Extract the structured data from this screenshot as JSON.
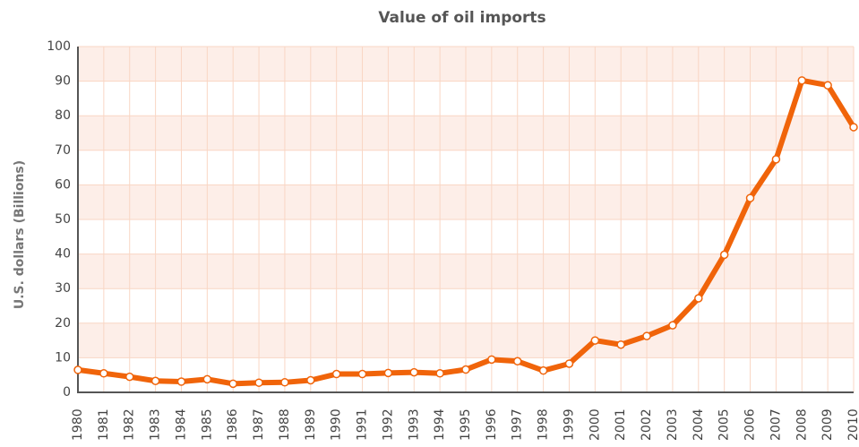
{
  "chart_data": {
    "type": "line",
    "title": "Value of oil imports",
    "y_label": "U.S. dollars (Billions)",
    "categories": [
      "1980",
      "1981",
      "1982",
      "1983",
      "1984",
      "1985",
      "1986",
      "1987",
      "1988",
      "1989",
      "1990",
      "1991",
      "1992",
      "1993",
      "1994",
      "1995",
      "1996",
      "1997",
      "1998",
      "1999",
      "2000",
      "2001",
      "2002",
      "2003",
      "2004",
      "2005",
      "2006",
      "2007",
      "2008",
      "2009",
      "2010"
    ],
    "series": [
      {
        "name": "Value of oil imports",
        "color": "#f0640a",
        "values": [
          6.5,
          5.5,
          4.5,
          3.3,
          3.1,
          3.8,
          2.5,
          2.8,
          2.9,
          3.5,
          5.3,
          5.3,
          5.6,
          5.8,
          5.5,
          6.6,
          9.5,
          9.0,
          6.3,
          8.3,
          15.0,
          13.8,
          16.3,
          19.4,
          27.2,
          39.8,
          56.2,
          67.4,
          90.2,
          88.8,
          76.7
        ]
      }
    ],
    "ylim": [
      0,
      100
    ],
    "yticks": [
      0,
      10,
      20,
      30,
      40,
      50,
      60,
      70,
      80,
      90,
      100
    ],
    "grid": true
  }
}
